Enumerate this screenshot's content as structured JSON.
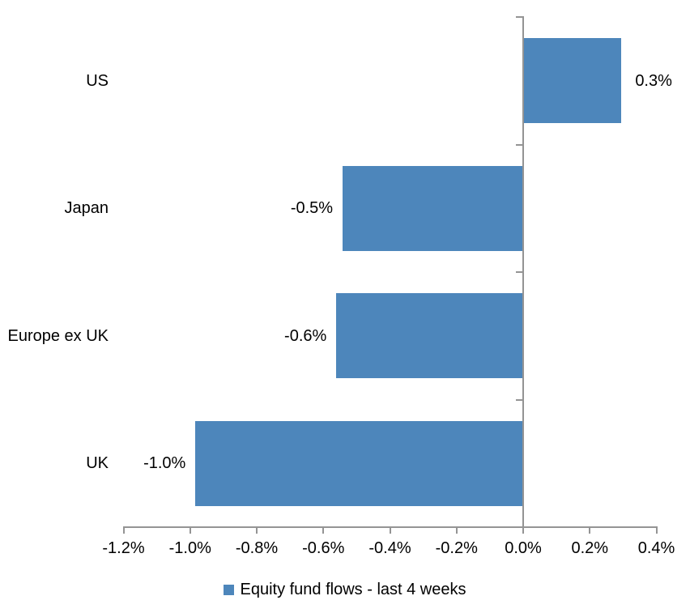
{
  "chart_data": {
    "type": "bar",
    "orientation": "horizontal",
    "title": "",
    "xlabel": "",
    "ylabel": "",
    "categories": [
      "US",
      "Japan",
      "Europe ex UK",
      "UK"
    ],
    "values": [
      0.3,
      -0.5,
      -0.6,
      -1.0
    ],
    "values_precise_estimate": [
      0.295,
      -0.542,
      -0.561,
      -0.984
    ],
    "data_labels": [
      "0.3%",
      "-0.5%",
      "-0.6%",
      "-1.0%"
    ],
    "xlim": [
      -1.2,
      0.4
    ],
    "x_ticks": [
      -1.2,
      -1.0,
      -0.8,
      -0.6,
      -0.4,
      -0.2,
      0.0,
      0.2,
      0.4
    ],
    "x_tick_labels": [
      "-1.2%",
      "-1.0%",
      "-0.8%",
      "-0.6%",
      "-0.4%",
      "-0.2%",
      "0.0%",
      "0.2%",
      "0.4%"
    ],
    "grid": false,
    "legend": {
      "position": "bottom",
      "label": "Equity fund flows - last 4 weeks"
    },
    "colors": {
      "bar": "#4d86bb",
      "axis": "#949494",
      "text": "#000000",
      "background": "#ffffff"
    }
  }
}
